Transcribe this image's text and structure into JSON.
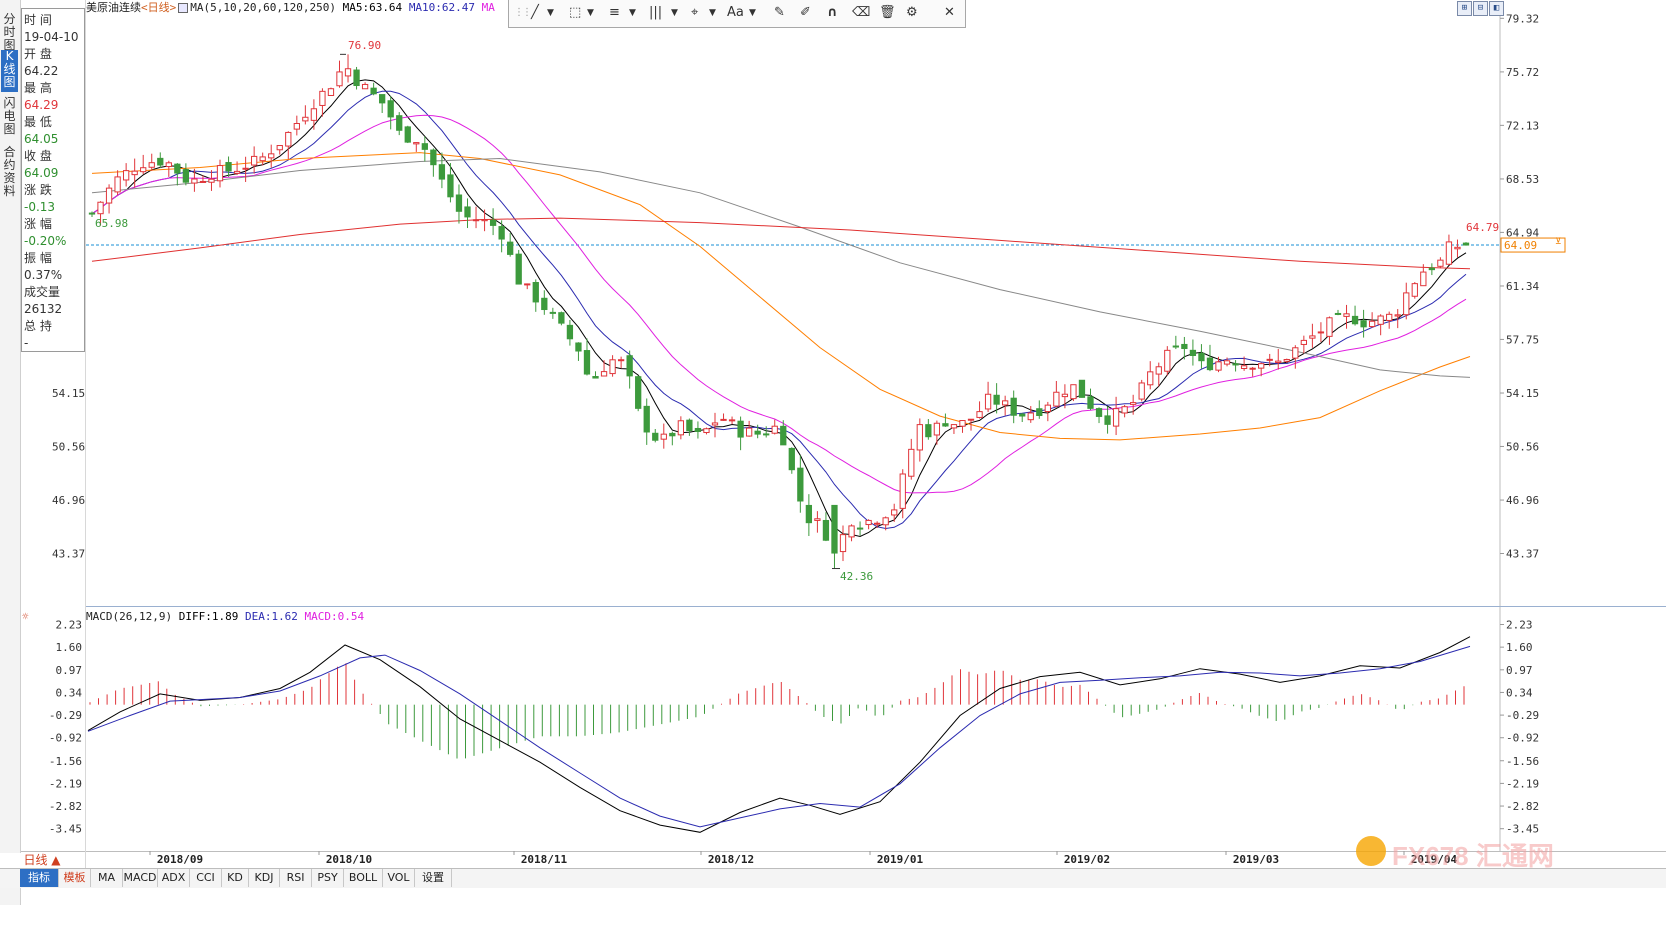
{
  "header": {
    "instrument": "美原油连续",
    "period_tag": "<日线>",
    "ma_params": "MA(5,10,20,60,120,250)",
    "ma5": "MA5:63.64",
    "ma10": "MA10:62.47",
    "ma_more": "MA"
  },
  "side_tabs": [
    "分时图",
    "K线图",
    "闪电图",
    "合约资料"
  ],
  "info_panel": {
    "time_label": "时 间",
    "time_value": "19-04-10",
    "open_label": "开 盘",
    "open_value": "64.22",
    "high_label": "最 高",
    "high_value": "64.29",
    "low_label": "最 低",
    "low_value": "64.05",
    "close_label": "收 盘",
    "close_value": "64.09",
    "change_label": "涨 跌",
    "change_value": "-0.13",
    "pct_label": "涨 幅",
    "pct_value": "-0.20%",
    "amp_label": "振 幅",
    "amp_value": "0.37%",
    "vol_label": "成交量",
    "vol_value": "26132",
    "oi_label": "总 持",
    "oi_value": "-"
  },
  "toolbar": {
    "line_tool": "╱",
    "rect_tool": "⬚",
    "fib_tool": "≡",
    "channel_tool": "|||",
    "node_tool": "⌖",
    "text_tool": "Aa",
    "pen_tool": "✎",
    "pencil_tool": "✐",
    "magnet_tool": "∩",
    "eraser_tool": "⌫",
    "delete_tool": "🗑",
    "settings_tool": "⚙",
    "close": "✕"
  },
  "price_axis": [
    "79.32",
    "75.72",
    "72.13",
    "68.53",
    "64.94",
    "61.34",
    "57.75",
    "54.15",
    "50.56",
    "46.96",
    "43.37"
  ],
  "left_price_labels": [
    "54.15",
    "50.56",
    "46.96",
    "43.37"
  ],
  "price_markers": {
    "high": "76.90",
    "low": "42.36",
    "start": "65.98",
    "recent_high": "64.79",
    "last": "64.09"
  },
  "macd_header": {
    "params": "MACD(26,12,9)",
    "diff": "DIFF:1.89",
    "dea": "DEA:1.62",
    "macd": "MACD:0.54"
  },
  "macd_axis": [
    "2.23",
    "1.60",
    "0.97",
    "0.34",
    "-0.29",
    "-0.92",
    "-1.56",
    "-2.19",
    "-2.82",
    "-3.45"
  ],
  "date_axis": [
    "2018/09",
    "2018/10",
    "2018/11",
    "2018/12",
    "2019/01",
    "2019/02",
    "2019/03",
    "2019/04"
  ],
  "bottom_tabs": [
    "指标",
    "模板",
    "MA",
    "MACD",
    "ADX",
    "CCI",
    "KD",
    "KDJ",
    "RSI",
    "PSY",
    "BOLL",
    "VOL",
    "设置"
  ],
  "period_selector": "日线 ▲",
  "watermark": {
    "text": "FX678",
    "cn": "汇通网"
  },
  "colors": {
    "up": "#e0353a",
    "down": "#3d9a3d",
    "ma5": "#000000",
    "ma10": "#2b2bb0",
    "ma20": "#e020e0",
    "ma60": "#ff7f00",
    "ma120": "#888888",
    "ma250": "#e03030",
    "last_price": "#f08000",
    "grid_dash": "#1a8fd6"
  },
  "chart_data": {
    "type": "candlestick",
    "x_range": [
      "2018/08/20",
      "2019/04/10"
    ],
    "ylim": [
      42.0,
      79.5
    ],
    "key_points": [
      {
        "date": "2018/08/20",
        "price": 65.98,
        "label": "low"
      },
      {
        "date": "2018/10/03",
        "price": 76.9,
        "label": "high"
      },
      {
        "date": "2018/12/24",
        "price": 42.36,
        "label": "low"
      },
      {
        "date": "2019/04/09",
        "price": 64.79,
        "label": "high"
      },
      {
        "date": "2019/04/10",
        "price": 64.09,
        "label": "close"
      }
    ],
    "macd_range": [
      -3.6,
      2.3
    ]
  }
}
